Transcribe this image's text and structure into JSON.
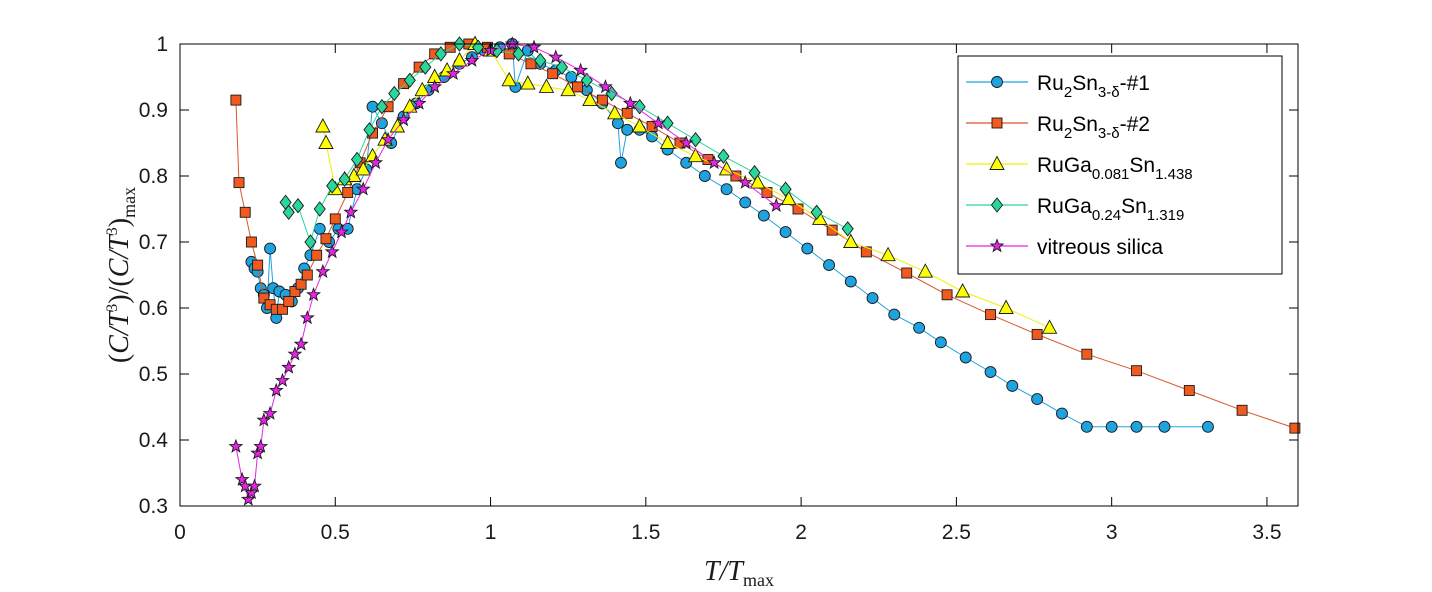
{
  "chart_data": {
    "type": "scatter",
    "title": "",
    "xlabel": "T/T_max",
    "ylabel": "(C/T^3)/(C/T^3)_max",
    "xlim": [
      0,
      3.6
    ],
    "ylim": [
      0.3,
      1.0
    ],
    "xticks": [
      "0",
      "0.5",
      "1",
      "1.5",
      "2",
      "2.5",
      "3",
      "3.5"
    ],
    "yticks": [
      "0.3",
      "0.4",
      "0.5",
      "0.6",
      "0.7",
      "0.8",
      "0.9",
      "1"
    ],
    "grid": false,
    "legend_position": "top-right",
    "series": [
      {
        "name": "Ru2Sn3-δ-#1",
        "label_parts": [
          "Ru",
          "2",
          "Sn",
          "3-δ",
          "-#1"
        ],
        "color": "#1fa2e0",
        "line_color": "#1fa2e0",
        "marker": "circle",
        "x": [
          0.23,
          0.24,
          0.25,
          0.26,
          0.27,
          0.28,
          0.29,
          0.3,
          0.31,
          0.32,
          0.34,
          0.36,
          0.38,
          0.4,
          0.42,
          0.45,
          0.48,
          0.51,
          0.54,
          0.57,
          0.6,
          0.62,
          0.65,
          0.68,
          0.72,
          0.76,
          0.8,
          0.85,
          0.9,
          0.94,
          0.98,
          1.03,
          1.07,
          1.08,
          1.12,
          1.16,
          1.21,
          1.26,
          1.31,
          1.36,
          1.41,
          1.42,
          1.44,
          1.48,
          1.52,
          1.57,
          1.63,
          1.69,
          1.76,
          1.82,
          1.88,
          1.95,
          2.02,
          2.09,
          2.16,
          2.23,
          2.3,
          2.38,
          2.45,
          2.53,
          2.61,
          2.68,
          2.76,
          2.84,
          2.92,
          3.0,
          3.08,
          3.17,
          3.31
        ],
        "y": [
          0.67,
          0.66,
          0.655,
          0.63,
          0.62,
          0.6,
          0.69,
          0.63,
          0.585,
          0.625,
          0.62,
          0.61,
          0.63,
          0.66,
          0.68,
          0.72,
          0.7,
          0.72,
          0.72,
          0.78,
          0.81,
          0.905,
          0.88,
          0.85,
          0.89,
          0.91,
          0.93,
          0.95,
          0.97,
          0.98,
          0.99,
          0.995,
          1.0,
          0.935,
          0.99,
          0.97,
          0.96,
          0.95,
          0.93,
          0.91,
          0.88,
          0.82,
          0.87,
          0.87,
          0.86,
          0.84,
          0.82,
          0.8,
          0.78,
          0.76,
          0.74,
          0.715,
          0.69,
          0.665,
          0.64,
          0.615,
          0.59,
          0.57,
          0.548,
          0.525,
          0.503,
          0.482,
          0.462,
          0.44,
          0.42,
          0.42,
          0.42,
          0.42,
          0.42
        ]
      },
      {
        "name": "Ru2Sn3-δ-#2",
        "label_parts": [
          "Ru",
          "2",
          "Sn",
          "3-δ",
          "-#2"
        ],
        "color": "#f05a1e",
        "line_color": "#d9552e",
        "marker": "square",
        "x": [
          0.18,
          0.19,
          0.21,
          0.23,
          0.25,
          0.27,
          0.29,
          0.31,
          0.33,
          0.35,
          0.37,
          0.39,
          0.41,
          0.44,
          0.47,
          0.5,
          0.54,
          0.58,
          0.62,
          0.67,
          0.72,
          0.77,
          0.82,
          0.87,
          0.93,
          0.99,
          1.06,
          1.13,
          1.2,
          1.28,
          1.36,
          1.44,
          1.52,
          1.61,
          1.7,
          1.79,
          1.89,
          1.99,
          2.1,
          2.21,
          2.34,
          2.47,
          2.61,
          2.76,
          2.92,
          3.08,
          3.25,
          3.42,
          3.59
        ],
        "y": [
          0.915,
          0.79,
          0.745,
          0.7,
          0.665,
          0.615,
          0.605,
          0.598,
          0.598,
          0.61,
          0.625,
          0.636,
          0.65,
          0.68,
          0.705,
          0.735,
          0.775,
          0.82,
          0.865,
          0.905,
          0.94,
          0.965,
          0.985,
          0.995,
          1.0,
          0.995,
          0.985,
          0.97,
          0.955,
          0.935,
          0.915,
          0.895,
          0.875,
          0.85,
          0.825,
          0.8,
          0.775,
          0.75,
          0.718,
          0.685,
          0.653,
          0.62,
          0.59,
          0.56,
          0.53,
          0.505,
          0.475,
          0.445,
          0.418
        ]
      },
      {
        "name": "RuGa0.081Sn1.438",
        "label_parts": [
          "RuGa",
          "0.081",
          "Sn",
          "1.438",
          ""
        ],
        "color": "#ffff00",
        "line_color": "#f0f000",
        "marker": "triangle",
        "x": [
          0.46,
          0.47,
          0.5,
          0.53,
          0.56,
          0.59,
          0.62,
          0.66,
          0.7,
          0.74,
          0.78,
          0.82,
          0.86,
          0.9,
          0.95,
          1.0,
          1.06,
          1.12,
          1.18,
          1.25,
          1.32,
          1.4,
          1.48,
          1.57,
          1.66,
          1.76,
          1.86,
          1.96,
          2.06,
          2.16,
          2.28,
          2.4,
          2.52,
          2.66,
          2.8
        ],
        "y": [
          0.875,
          0.85,
          0.78,
          0.795,
          0.8,
          0.81,
          0.83,
          0.855,
          0.875,
          0.905,
          0.93,
          0.95,
          0.96,
          0.975,
          1.0,
          0.99,
          0.945,
          0.94,
          0.935,
          0.93,
          0.915,
          0.895,
          0.875,
          0.85,
          0.83,
          0.81,
          0.79,
          0.765,
          0.735,
          0.7,
          0.68,
          0.655,
          0.625,
          0.6,
          0.57
        ]
      },
      {
        "name": "RuGa0.24Sn1.319",
        "label_parts": [
          "RuGa",
          "0.24",
          "Sn",
          "1.319",
          ""
        ],
        "color": "#2bd69c",
        "line_color": "#2bd69c",
        "marker": "diamond",
        "x": [
          0.34,
          0.35,
          0.38,
          0.42,
          0.45,
          0.49,
          0.53,
          0.57,
          0.61,
          0.65,
          0.69,
          0.74,
          0.79,
          0.84,
          0.9,
          0.96,
          1.02,
          1.09,
          1.16,
          1.23,
          1.31,
          1.39,
          1.48,
          1.57,
          1.66,
          1.75,
          1.85,
          1.95,
          2.05,
          2.15
        ],
        "y": [
          0.76,
          0.745,
          0.755,
          0.7,
          0.75,
          0.785,
          0.795,
          0.825,
          0.87,
          0.905,
          0.925,
          0.945,
          0.965,
          0.985,
          1.0,
          0.995,
          0.99,
          0.985,
          0.975,
          0.965,
          0.945,
          0.925,
          0.905,
          0.88,
          0.855,
          0.83,
          0.805,
          0.78,
          0.745,
          0.72
        ]
      },
      {
        "name": "vitreous silica",
        "label_parts": [
          "vitreous silica",
          "",
          "",
          "",
          ""
        ],
        "color": "#e624e6",
        "line_color": "#e624e6",
        "marker": "star",
        "x": [
          0.18,
          0.2,
          0.21,
          0.22,
          0.23,
          0.24,
          0.25,
          0.26,
          0.27,
          0.29,
          0.31,
          0.33,
          0.35,
          0.37,
          0.39,
          0.41,
          0.43,
          0.46,
          0.49,
          0.52,
          0.55,
          0.59,
          0.63,
          0.67,
          0.72,
          0.77,
          0.82,
          0.88,
          0.94,
          1.0,
          1.07,
          1.14,
          1.21,
          1.29,
          1.37,
          1.45,
          1.54,
          1.63,
          1.72,
          1.82,
          1.92
        ],
        "y": [
          0.39,
          0.34,
          0.33,
          0.31,
          0.32,
          0.33,
          0.38,
          0.39,
          0.43,
          0.44,
          0.475,
          0.49,
          0.51,
          0.53,
          0.545,
          0.585,
          0.62,
          0.655,
          0.685,
          0.715,
          0.745,
          0.78,
          0.82,
          0.855,
          0.885,
          0.91,
          0.935,
          0.955,
          0.975,
          0.99,
          1.0,
          0.995,
          0.98,
          0.96,
          0.935,
          0.91,
          0.88,
          0.85,
          0.82,
          0.79,
          0.755
        ]
      }
    ]
  }
}
